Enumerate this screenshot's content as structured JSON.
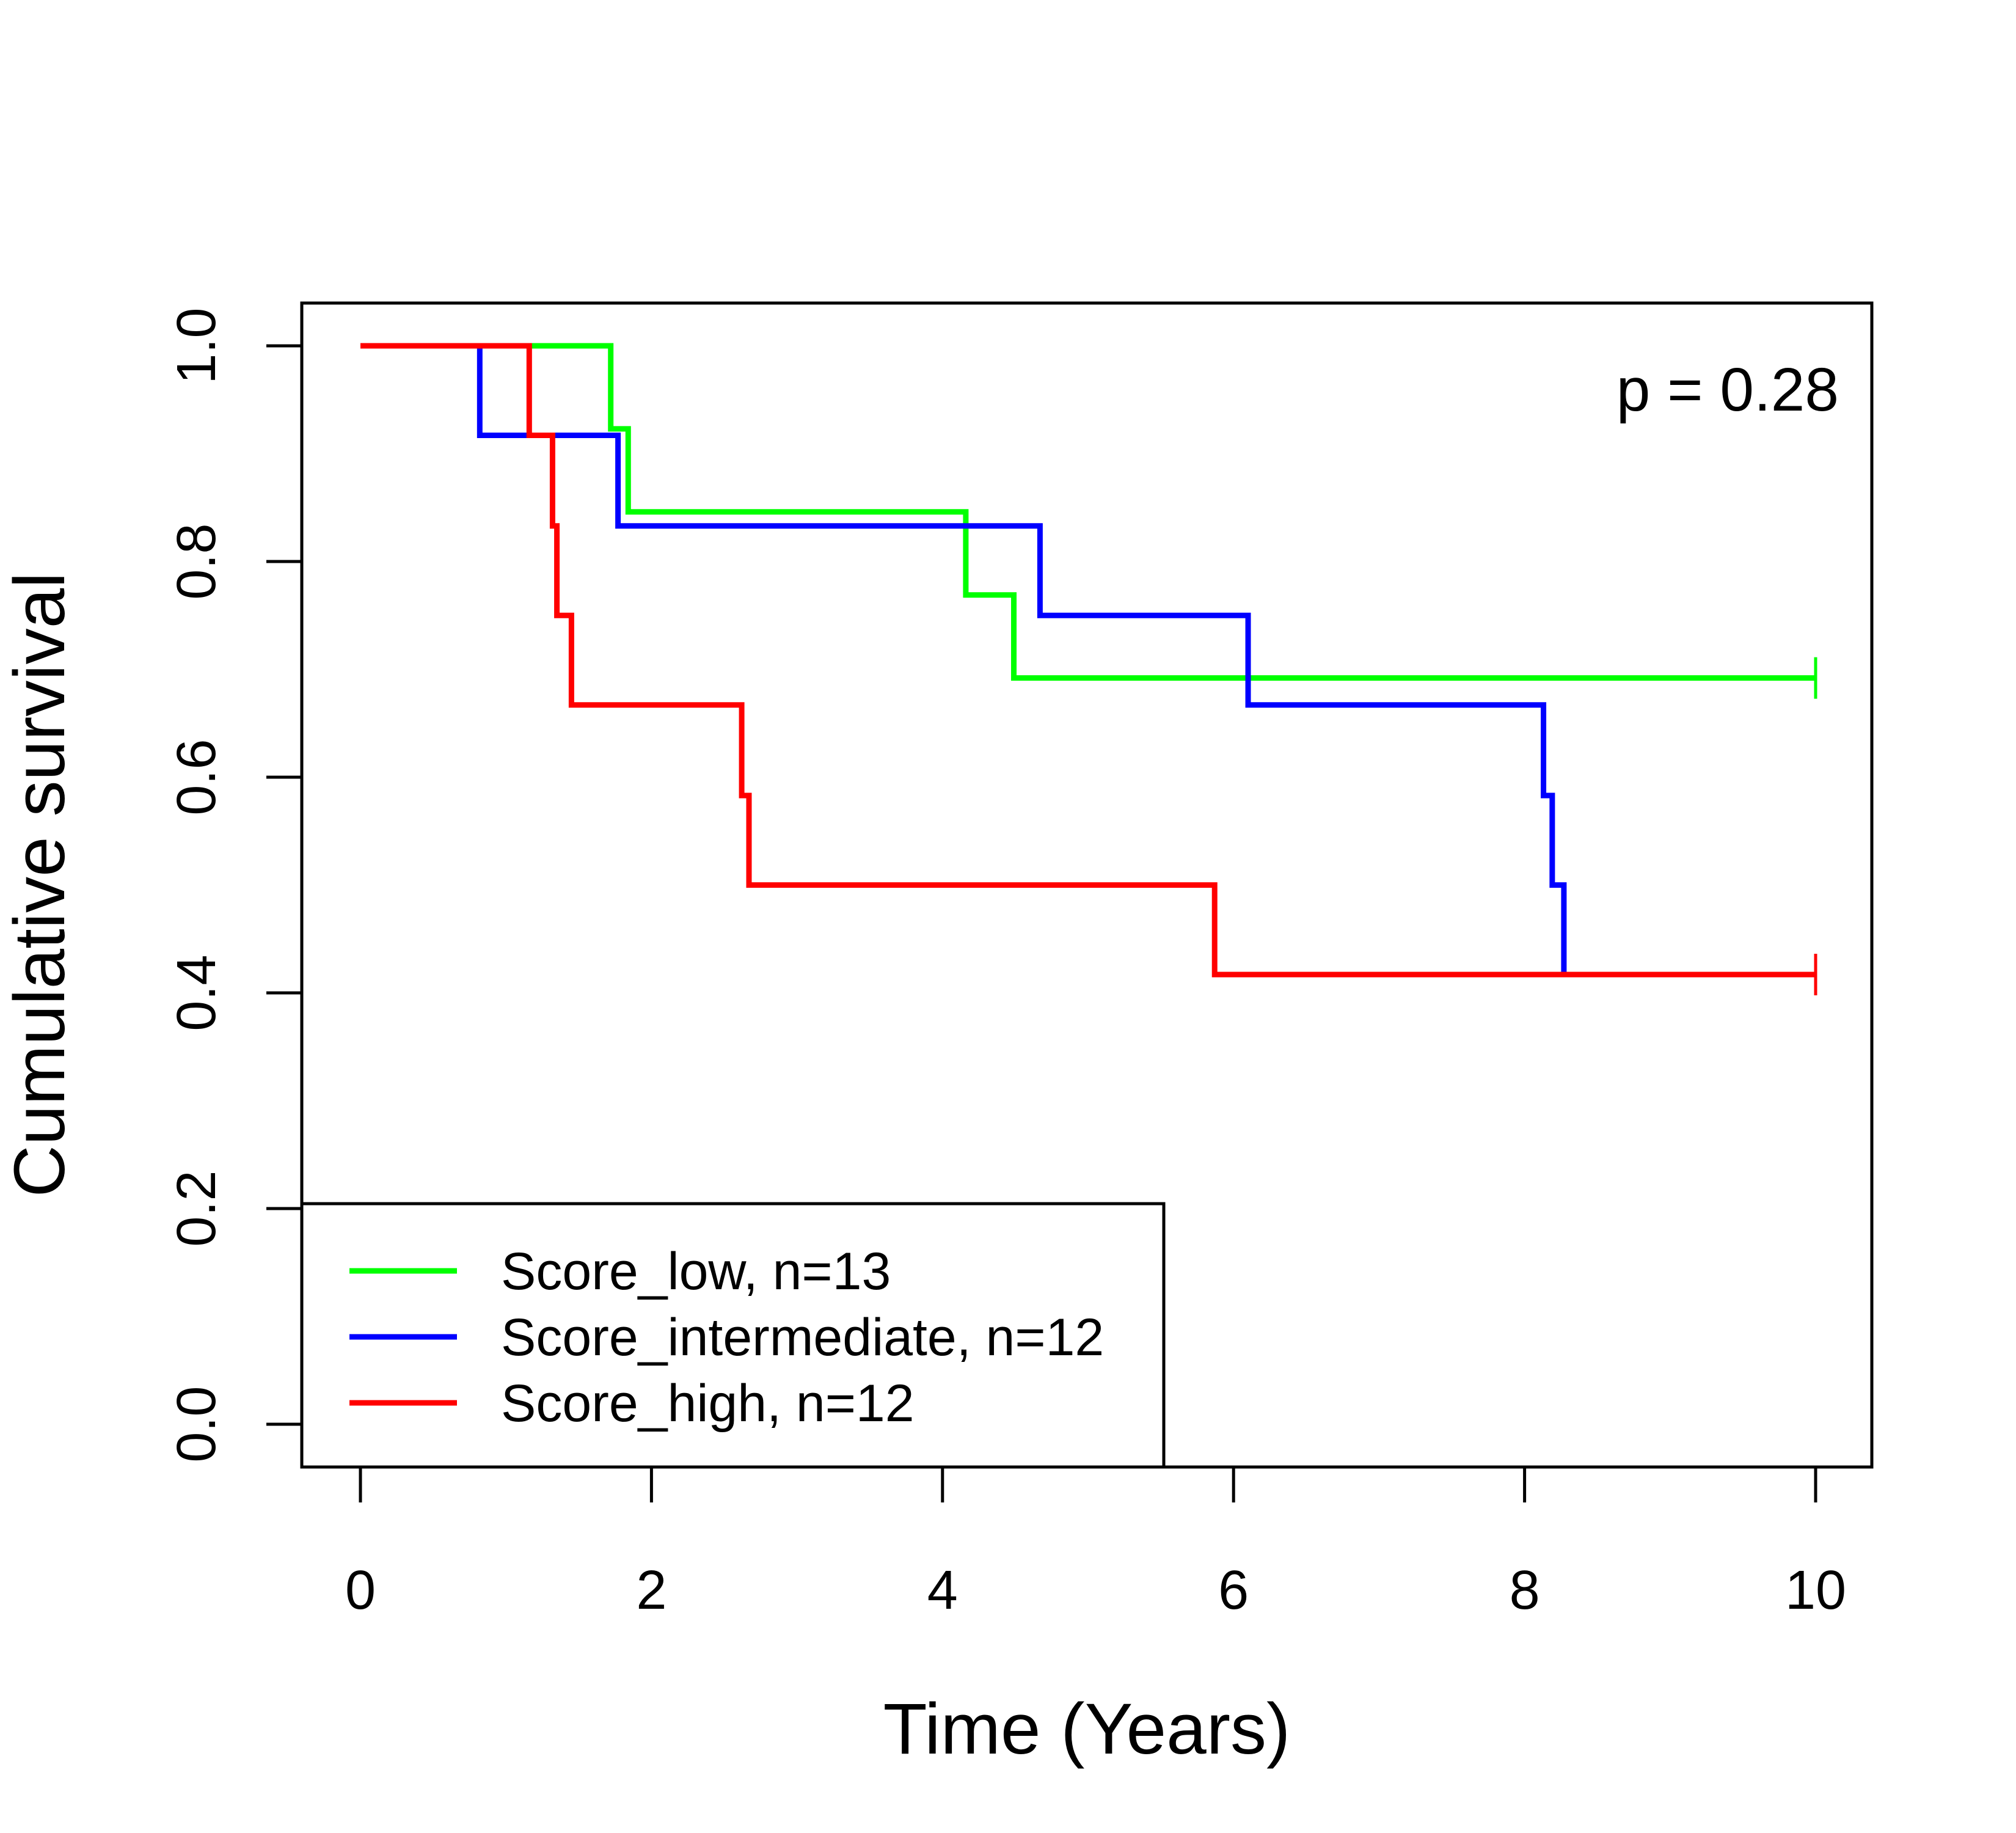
{
  "chart_data": {
    "type": "line",
    "subtype": "kaplan-meier",
    "title": "",
    "xlabel": "Time (Years)",
    "ylabel": "Cumulative survival",
    "xlim": [
      0,
      10
    ],
    "ylim": [
      0,
      1
    ],
    "xticks": [
      0,
      2,
      4,
      6,
      8,
      10
    ],
    "yticks": [
      0.0,
      0.2,
      0.4,
      0.6,
      0.8,
      1.0
    ],
    "xtick_labels": [
      "0",
      "2",
      "4",
      "6",
      "8",
      "10"
    ],
    "ytick_labels": [
      "0.0",
      "0.2",
      "0.4",
      "0.6",
      "0.8",
      "1.0"
    ],
    "grid": false,
    "legend_position": "bottom-left",
    "annotation": "p = 0.28",
    "series": [
      {
        "name": "Score_low, n=13",
        "color": "#00ff00",
        "x": [
          0,
          1.72,
          1.84,
          4.16,
          4.49,
          10
        ],
        "y": [
          1.0,
          0.923,
          0.846,
          0.769,
          0.692,
          0.692
        ],
        "censored_at": [
          10
        ]
      },
      {
        "name": "Score_intermediate, n=12",
        "color": "#0000ff",
        "x": [
          0,
          0.82,
          1.77,
          4.67,
          6.1,
          8.13,
          8.19,
          8.27
        ],
        "y": [
          1.0,
          0.917,
          0.833,
          0.75,
          0.667,
          0.583,
          0.5,
          0.417
        ],
        "censored_at": []
      },
      {
        "name": "Score_high, n=12",
        "color": "#ff0000",
        "x": [
          0,
          1.16,
          1.32,
          1.35,
          1.45,
          2.62,
          2.67,
          5.87,
          10
        ],
        "y": [
          1.0,
          0.917,
          0.833,
          0.75,
          0.667,
          0.583,
          0.5,
          0.417,
          0.417
        ],
        "censored_at": [
          10
        ]
      }
    ]
  }
}
